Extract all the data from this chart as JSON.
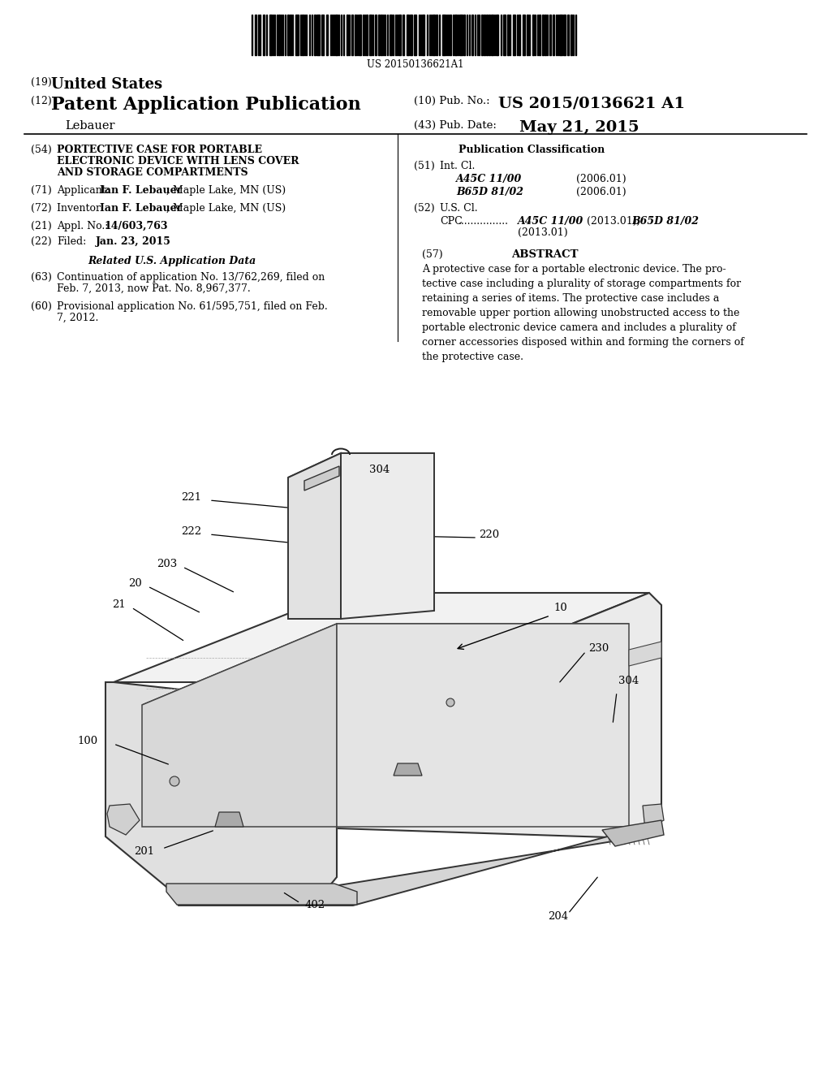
{
  "background_color": "#ffffff",
  "barcode_text": "US 20150136621A1",
  "pub_no": "US 2015/0136621 A1",
  "pub_date": "May 21, 2015",
  "fig_width": 1024,
  "fig_height": 1320,
  "dpi": 100
}
